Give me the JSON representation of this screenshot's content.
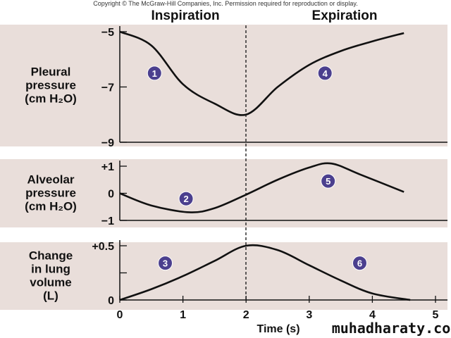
{
  "copyright": "Copyright © The McGraw-Hill Companies, Inc. Permission required for reproduction or display.",
  "phases": {
    "left": "Inspiration",
    "right": "Expiration"
  },
  "watermark": "muhadharaty.com",
  "colors": {
    "panel_bg": "#e9deda",
    "marker": "#4b3f8e",
    "line": "#111111"
  },
  "chart_data": [
    {
      "type": "line",
      "ylabel": [
        "Pleural",
        "pressure",
        "(cm H₂O)"
      ],
      "ylim": [
        -9,
        -5
      ],
      "yticks": [
        "−5",
        "−7",
        "−9"
      ],
      "ytick_values": [
        -5,
        -7,
        -9
      ],
      "x": [
        0,
        0.5,
        1,
        1.5,
        2,
        2.5,
        3,
        3.5,
        4,
        4.5
      ],
      "values": [
        -5,
        -5.5,
        -6.9,
        -7.6,
        -8,
        -7,
        -6.2,
        -5.7,
        -5.35,
        -5.05
      ],
      "markers": [
        {
          "label": "1",
          "x": 0.55,
          "y": -6.5
        },
        {
          "label": "4",
          "x": 3.25,
          "y": -6.5
        }
      ]
    },
    {
      "type": "line",
      "ylabel": [
        "Alveolar",
        "pressure",
        "(cm H₂O)"
      ],
      "ylim": [
        -1,
        1
      ],
      "yticks": [
        "+1",
        "0",
        "−1"
      ],
      "ytick_values": [
        1,
        0,
        -1
      ],
      "x": [
        0,
        0.5,
        1.1,
        1.5,
        2,
        2.5,
        3,
        3.35,
        3.8,
        4.5
      ],
      "values": [
        0,
        -0.45,
        -0.7,
        -0.55,
        -0.05,
        0.5,
        0.95,
        1.1,
        0.7,
        0.05
      ],
      "markers": [
        {
          "label": "2",
          "x": 1.05,
          "y": -0.2
        },
        {
          "label": "5",
          "x": 3.3,
          "y": 0.45
        }
      ]
    },
    {
      "type": "line",
      "ylabel": [
        "Change",
        "in lung",
        "volume",
        "(L)"
      ],
      "ylim": [
        0,
        0.5
      ],
      "yticks": [
        "+0.5",
        "",
        "0"
      ],
      "ytick_values": [
        0.5,
        0.25,
        0
      ],
      "x": [
        0,
        0.5,
        1,
        1.5,
        2,
        2.5,
        3,
        3.5,
        4,
        4.6
      ],
      "values": [
        0,
        0.1,
        0.22,
        0.36,
        0.5,
        0.46,
        0.32,
        0.18,
        0.06,
        0
      ],
      "markers": [
        {
          "label": "3",
          "x": 0.72,
          "y": 0.34
        },
        {
          "label": "6",
          "x": 3.8,
          "y": 0.34
        }
      ],
      "xlabel": "Time (s)",
      "xlim": [
        0,
        5
      ],
      "xticks": [
        "0",
        "1",
        "2",
        "3",
        "4",
        "5"
      ]
    }
  ]
}
